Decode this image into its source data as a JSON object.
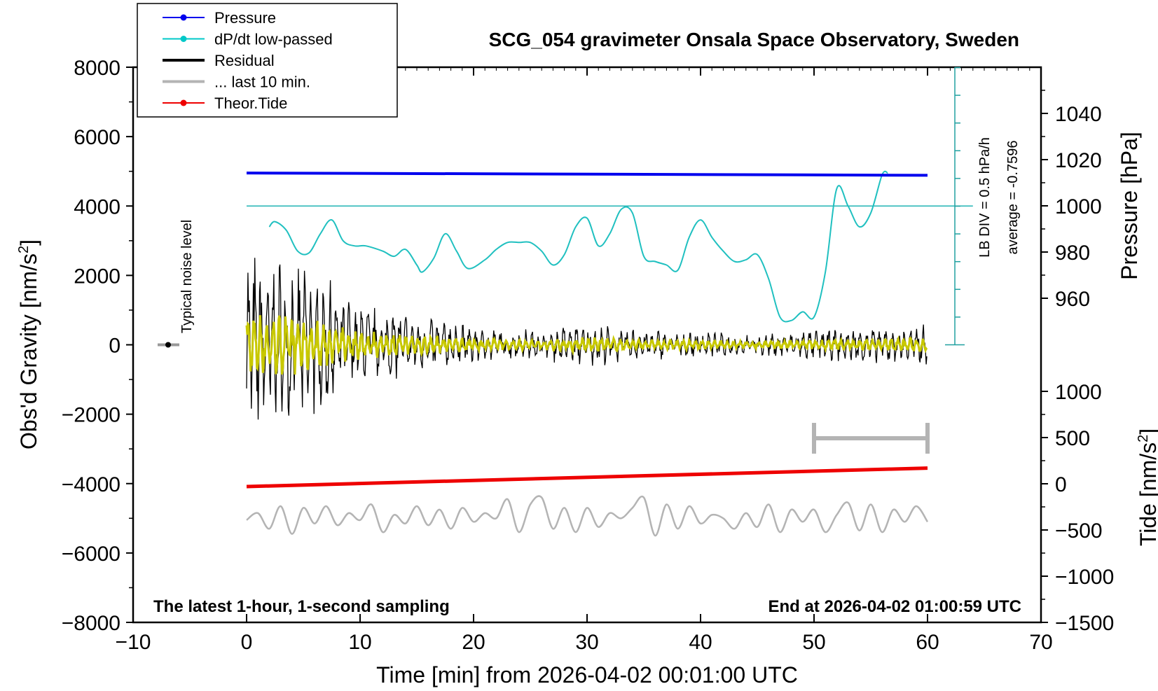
{
  "chart_data": {
    "type": "line",
    "title": "SCG_054 gravimeter Onsala Space Observatory, Sweden",
    "xlabel": "Time [min] from 2026-04-02 00:01:00 UTC",
    "ylabel_main": "Obs'd Gravity [nm/s",
    "ylabel_main_sup": "2",
    "ylabel_main_end": "]",
    "ylabel_pressure": "Pressure [hPa]",
    "ylabel_tide": "Tide [nm/s",
    "ylabel_tide_sup": "2",
    "ylabel_tide_end": "]",
    "xlim": [
      -10,
      70
    ],
    "ylim": [
      -8000,
      8000
    ],
    "x_ticks": [
      "−10",
      "0",
      "10",
      "20",
      "30",
      "40",
      "50",
      "60",
      "70"
    ],
    "x_tick_values": [
      -10,
      0,
      10,
      20,
      30,
      40,
      50,
      60,
      70
    ],
    "y_ticks": [
      "8000",
      "6000",
      "4000",
      "2000",
      "0",
      "−2000",
      "−4000",
      "−6000",
      "−8000"
    ],
    "y_tick_values": [
      8000,
      6000,
      4000,
      2000,
      0,
      -2000,
      -4000,
      -6000,
      -8000
    ],
    "pressure_ticks": [
      "1040",
      "1020",
      "1000",
      "980",
      "960"
    ],
    "pressure_tick_values": [
      1040,
      1020,
      1000,
      980,
      960
    ],
    "tide_ticks": [
      "1000",
      "500",
      "0",
      "−500",
      "−1000",
      "−1500"
    ],
    "tide_tick_values": [
      1000,
      500,
      0,
      -500,
      -1000,
      -1500
    ],
    "legend": [
      {
        "label": "Pressure",
        "color": "#0000ee",
        "marker": true
      },
      {
        "label": "dP/dt low-passed",
        "color": "#00c8c8",
        "marker": true
      },
      {
        "label": "Residual",
        "color": "#000000",
        "marker": false
      },
      {
        "label": "... last 10 min.",
        "color": "#b4b4b4",
        "marker": false
      },
      {
        "label": "Theor.Tide",
        "color": "#ee0000",
        "marker": true
      }
    ],
    "noise_label": "Typical noise level",
    "lb_div_label": "LB DIV = 0.5 hPa/h",
    "average_label": "average = -0.7596",
    "note_left": "The latest 1-hour, 1-second sampling",
    "note_right": "End at 2026-04-02 01:00:59 UTC",
    "series": [
      {
        "name": "Pressure",
        "unit": "hPa",
        "x": [
          0,
          60
        ],
        "values": [
          1014.2,
          1013.2
        ]
      },
      {
        "name": "Theor.Tide",
        "unit": "nm/s2",
        "x": [
          0,
          60
        ],
        "values": [
          -30,
          170
        ]
      },
      {
        "name": "dP/dt low-passed",
        "unit": "nm/s2 (gravity-axis scale)",
        "x": [
          2,
          2.5,
          3.5,
          4.5,
          5.5,
          6.5,
          7.5,
          8.5,
          9.5,
          10.5,
          12,
          13,
          14,
          15,
          15.5,
          16.5,
          17.5,
          18.5,
          19.5,
          21,
          22,
          23,
          24,
          25,
          26,
          27,
          28,
          29,
          30,
          31,
          32,
          33,
          34,
          35,
          36,
          37,
          38,
          39,
          40,
          41,
          42,
          43,
          44,
          45,
          46,
          47,
          48,
          49,
          50,
          51,
          52,
          53,
          54,
          55,
          56,
          56.5
        ],
        "values": [
          3400,
          3550,
          3300,
          2700,
          2650,
          3200,
          3600,
          3000,
          2850,
          2850,
          2700,
          2550,
          2750,
          2300,
          2100,
          2500,
          3200,
          2700,
          2200,
          2450,
          2750,
          2950,
          2950,
          2950,
          2700,
          2300,
          2600,
          3400,
          3650,
          2850,
          3200,
          3900,
          3800,
          2550,
          2400,
          2300,
          2150,
          3100,
          3600,
          3100,
          2700,
          2400,
          2450,
          2600,
          1900,
          800,
          700,
          950,
          800,
          2100,
          4500,
          4000,
          3400,
          3800,
          4900,
          4950
        ]
      },
      {
        "name": "Residual envelope",
        "unit": "nm/s2",
        "x": [
          0,
          5,
          10,
          15,
          20,
          25,
          30,
          35,
          40,
          45,
          50,
          55,
          60
        ],
        "values": [
          2800,
          2500,
          1200,
          900,
          550,
          450,
          650,
          450,
          400,
          300,
          450,
          550,
          600
        ]
      },
      {
        "name": "... last 10 min.",
        "unit": "nm/s2 (display offset -5000)",
        "x": [
          0,
          1,
          2,
          3,
          4,
          5,
          6,
          7,
          8,
          9,
          10,
          11,
          12,
          13,
          14,
          15,
          16,
          17,
          18,
          19,
          20,
          21,
          22,
          23,
          24,
          25,
          26,
          27,
          28,
          29,
          30,
          31,
          32,
          33,
          34,
          35,
          36,
          37,
          38,
          39,
          40,
          41,
          42,
          43,
          44,
          45,
          46,
          47,
          48,
          49,
          50,
          51,
          52,
          53,
          54,
          55,
          56,
          57,
          58,
          59,
          60
        ],
        "values": [
          -5050,
          -4850,
          -5300,
          -4650,
          -5450,
          -4700,
          -5150,
          -4650,
          -5200,
          -4850,
          -5050,
          -4600,
          -5400,
          -4900,
          -5150,
          -4650,
          -5200,
          -4750,
          -5300,
          -4700,
          -5100,
          -4850,
          -5000,
          -4450,
          -5400,
          -4600,
          -4400,
          -5300,
          -4700,
          -5400,
          -4700,
          -5250,
          -4850,
          -5000,
          -4700,
          -4400,
          -5500,
          -4600,
          -5300,
          -4650,
          -5150,
          -4900,
          -5000,
          -5300,
          -4850,
          -5250,
          -4600,
          -5400,
          -4750,
          -5100,
          -4750,
          -5400,
          -4900,
          -4550,
          -5350,
          -4600,
          -5400,
          -4750,
          -5100,
          -4650,
          -5100
        ]
      }
    ],
    "lb_bar_range_x": [
      50,
      60
    ]
  }
}
